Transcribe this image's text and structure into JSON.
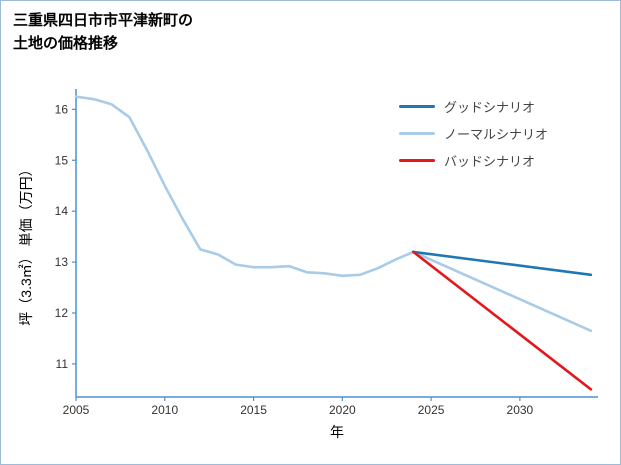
{
  "page": {
    "title_line1": "三重県四日市市平津新町の",
    "title_line2": "土地の価格推移"
  },
  "chart_data": {
    "type": "line",
    "title": "三重県四日市市平津新町の土地の価格推移",
    "xlabel": "年",
    "ylabel": "坪（3.3㎡） 単価（万円）",
    "xlim": [
      2005,
      2034.4
    ],
    "ylim": [
      10.35,
      16.4
    ],
    "xticks": [
      2005,
      2010,
      2015,
      2020,
      2025,
      2030
    ],
    "yticks": [
      11,
      12,
      13,
      14,
      15,
      16
    ],
    "grid": false,
    "legend_position": "upper right",
    "axis_color": "#4a90d2",
    "tick_label_color": "#333333",
    "series": [
      {
        "key": "good-scenario",
        "name": "グッドシナリオ",
        "color": "#1f77b4",
        "x": [
          2024,
          2034
        ],
        "y": [
          13.2,
          12.75
        ]
      },
      {
        "key": "normal-scenario",
        "name": "ノーマルシナリオ",
        "color": "#a8cbe8",
        "x": [
          2005,
          2006,
          2007,
          2008,
          2009,
          2010,
          2011,
          2012,
          2013,
          2014,
          2015,
          2016,
          2017,
          2018,
          2019,
          2020,
          2021,
          2022,
          2023,
          2024,
          2034
        ],
        "y": [
          16.25,
          16.2,
          16.1,
          15.85,
          15.2,
          14.5,
          13.85,
          13.25,
          13.15,
          12.95,
          12.9,
          12.9,
          12.92,
          12.8,
          12.78,
          12.73,
          12.75,
          12.88,
          13.05,
          13.2,
          11.65
        ]
      },
      {
        "key": "bad-scenario",
        "name": "バッドシナリオ",
        "color": "#e4181c",
        "x": [
          2024,
          2034
        ],
        "y": [
          13.2,
          10.5
        ]
      }
    ]
  }
}
